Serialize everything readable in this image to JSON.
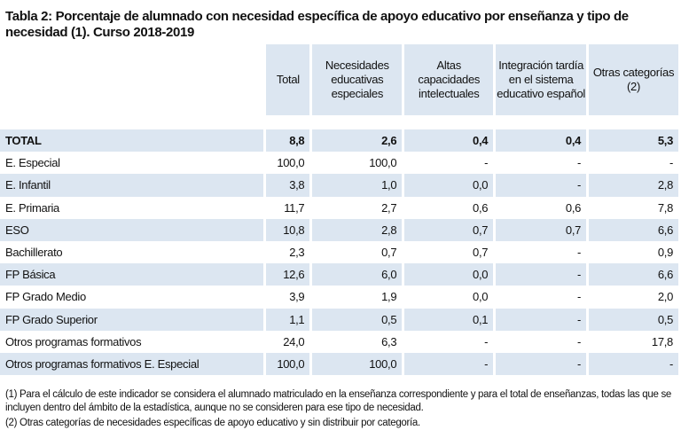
{
  "title": "Tabla 2: Porcentaje de alumnado con necesidad específica de apoyo educativo por enseñanza y tipo de necesidad (1). Curso 2018-2019",
  "colors": {
    "header_bg": "#dce6f1",
    "stripe_bg": "#dce6f1"
  },
  "columns": [
    "Total",
    "Necesidades educativas especiales",
    "Altas capacidades intelectuales",
    "Integración tardía en el sistema educativo español",
    "Otras categorías (2)"
  ],
  "rows": [
    {
      "label": "TOTAL",
      "values": [
        "8,8",
        "2,6",
        "0,4",
        "0,4",
        "5,3"
      ]
    },
    {
      "label": "E. Especial",
      "values": [
        "100,0",
        "100,0",
        "-",
        "-",
        "-"
      ]
    },
    {
      "label": "E. Infantil",
      "values": [
        "3,8",
        "1,0",
        "0,0",
        "-",
        "2,8"
      ]
    },
    {
      "label": "E. Primaria",
      "values": [
        "11,7",
        "2,7",
        "0,6",
        "0,6",
        "7,8"
      ]
    },
    {
      "label": "ESO",
      "values": [
        "10,8",
        "2,8",
        "0,7",
        "0,7",
        "6,6"
      ]
    },
    {
      "label": "Bachillerato",
      "values": [
        "2,3",
        "0,7",
        "0,7",
        "-",
        "0,9"
      ]
    },
    {
      "label": "FP Básica",
      "values": [
        "12,6",
        "6,0",
        "0,0",
        "-",
        "6,6"
      ]
    },
    {
      "label": "FP Grado Medio",
      "values": [
        "3,9",
        "1,9",
        "0,0",
        "-",
        "2,0"
      ]
    },
    {
      "label": "FP Grado Superior",
      "values": [
        "1,1",
        "0,5",
        "0,1",
        "-",
        "0,5"
      ]
    },
    {
      "label": "Otros programas formativos",
      "values": [
        "24,0",
        "6,3",
        "-",
        "-",
        "17,8"
      ]
    },
    {
      "label": "Otros programas formativos E. Especial",
      "values": [
        "100,0",
        "100,0",
        "-",
        "-",
        "-"
      ]
    }
  ],
  "notes": [
    "(1) Para el cálculo de este indicador se considera el alumnado matriculado en la enseñanza correspondiente y para el total de enseñanzas, todas las que se incluyen dentro del ámbito de la estadística, aunque no se consideren para ese tipo de necesidad.",
    "(2) Otras categorías de necesidades específicas de apoyo educativo y sin distribuir por categoría."
  ]
}
